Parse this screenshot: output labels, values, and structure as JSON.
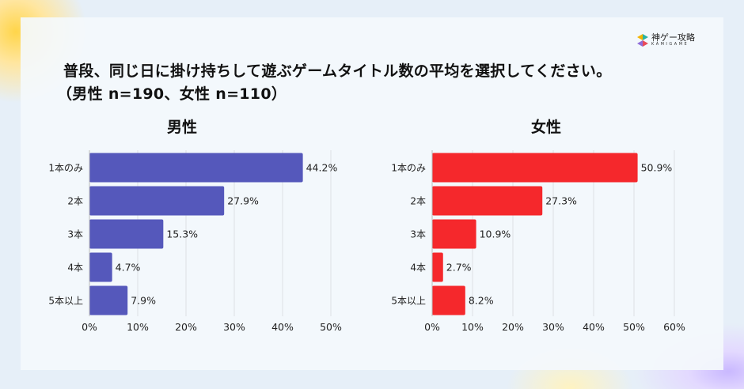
{
  "title_line1": "普段、同じ日に掛け持ちして遊ぶゲームタイトル数の平均を選択してください。",
  "title_line2": "（男性 n=190、女性 n=110）",
  "logo": {
    "name": "神ゲー攻略",
    "sub": "KAMIGAME"
  },
  "chart_data": [
    {
      "type": "bar",
      "orientation": "horizontal",
      "title": "男性",
      "categories": [
        "1本のみ",
        "2本",
        "3本",
        "4本",
        "5本以上"
      ],
      "values": [
        44.2,
        27.9,
        15.3,
        4.7,
        7.9
      ],
      "value_labels": [
        "44.2%",
        "27.9%",
        "15.3%",
        "4.7%",
        "7.9%"
      ],
      "xlim": [
        0,
        50
      ],
      "ticks": [
        "0%",
        "10%",
        "20%",
        "30%",
        "40%",
        "50%"
      ],
      "tick_values": [
        0,
        10,
        20,
        30,
        40,
        50
      ],
      "color": "#5558bb",
      "grid": true
    },
    {
      "type": "bar",
      "orientation": "horizontal",
      "title": "女性",
      "categories": [
        "1本のみ",
        "2本",
        "3本",
        "4本",
        "5本以上"
      ],
      "values": [
        50.9,
        27.3,
        10.9,
        2.7,
        8.2
      ],
      "value_labels": [
        "50.9%",
        "27.3%",
        "10.9%",
        "2.7%",
        "8.2%"
      ],
      "xlim": [
        0,
        60
      ],
      "ticks": [
        "0%",
        "10%",
        "20%",
        "30%",
        "40%",
        "50%",
        "60%"
      ],
      "tick_values": [
        0,
        10,
        20,
        30,
        40,
        50,
        60
      ],
      "color": "#f5282c",
      "grid": true
    }
  ]
}
